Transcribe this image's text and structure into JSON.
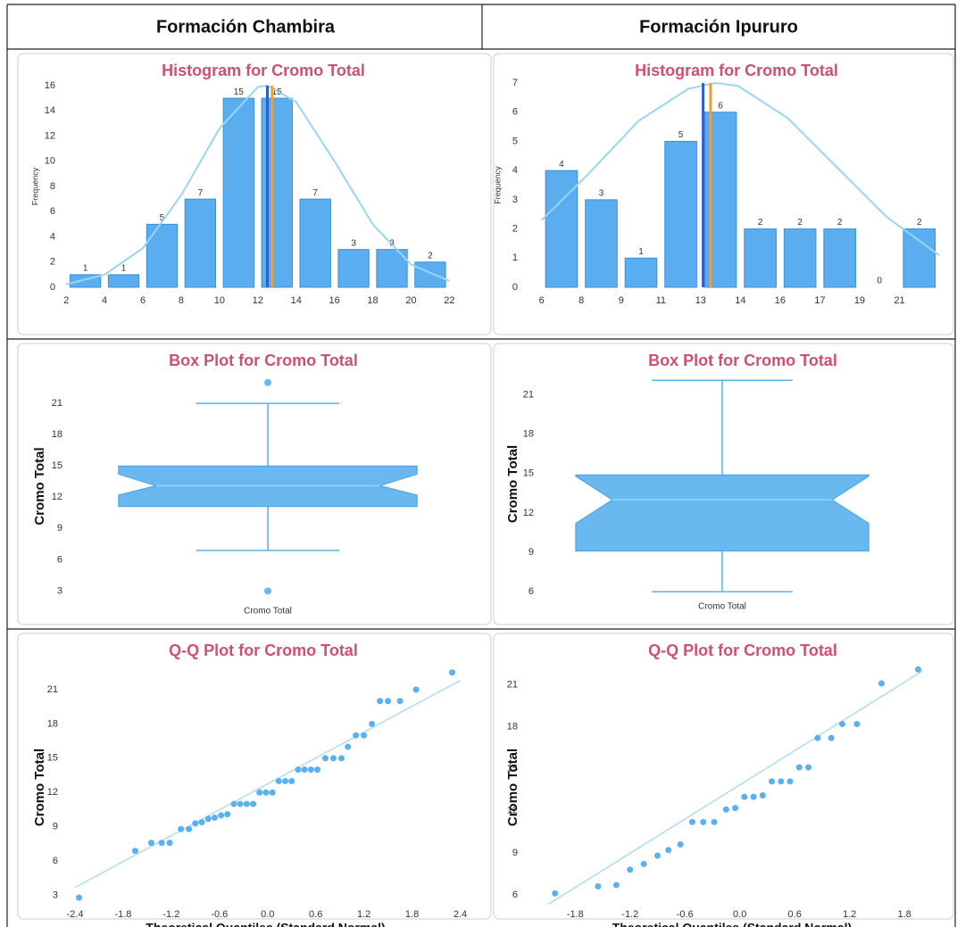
{
  "headers": [
    "Formación Chambira",
    "Formación Ipururo"
  ],
  "chart_data": [
    {
      "type": "histogram",
      "title": "Histogram for Cromo Total",
      "ylabel": "Frequency",
      "color": "#5aaef0",
      "bins": [
        2,
        4,
        6,
        8,
        10,
        12,
        14,
        16,
        18,
        20,
        22
      ],
      "values": [
        1,
        1,
        5,
        7,
        15,
        15,
        7,
        3,
        3,
        2
      ],
      "xlim": [
        1.9,
        22.4
      ],
      "xticks": [
        2,
        4,
        6,
        8,
        10,
        12,
        14,
        16,
        18,
        20,
        22
      ],
      "ylim": [
        0,
        16
      ],
      "yticks": [
        0,
        2,
        4,
        6,
        8,
        10,
        12,
        14,
        16
      ],
      "mean": 12.5,
      "median": 12.75,
      "mean_color": "#2a5fd0",
      "median_color": "#f0a030",
      "curve": {
        "color": "#9ad6f2",
        "x": [
          2,
          4,
          6,
          8,
          10,
          12,
          12.5,
          14,
          16,
          18,
          20,
          22
        ],
        "values": [
          0.23,
          1.0,
          3.1,
          7.3,
          12.6,
          15.9,
          16,
          14.7,
          10.0,
          5.0,
          1.8,
          0.5
        ]
      }
    },
    {
      "type": "histogram",
      "title": "Histogram for Cromo Total",
      "ylabel": "Frequency",
      "color": "#5aaef0",
      "bins": [
        6.1,
        7.7,
        9.3,
        10.9,
        12.5,
        14.1,
        15.7,
        17.3,
        18.9,
        20.5,
        22.1
      ],
      "values": [
        4,
        3,
        1,
        5,
        6,
        2,
        2,
        2,
        0,
        2
      ],
      "xlim": [
        5.5,
        22.1
      ],
      "xticks": [
        {
          "value": 6.1,
          "label": "6"
        },
        {
          "value": 7.7,
          "label": "8"
        },
        {
          "value": 9.3,
          "label": "9"
        },
        {
          "value": 10.9,
          "label": "11"
        },
        {
          "value": 12.5,
          "label": "13"
        },
        {
          "value": 14.1,
          "label": "14"
        },
        {
          "value": 15.7,
          "label": "16"
        },
        {
          "value": 17.3,
          "label": "17"
        },
        {
          "value": 18.9,
          "label": "19"
        },
        {
          "value": 20.5,
          "label": "21"
        }
      ],
      "ylim": [
        0,
        7
      ],
      "yticks": [
        0,
        1,
        2,
        3,
        4,
        5,
        6,
        7
      ],
      "mean": 12.6,
      "median": 12.9,
      "mean_color": "#2a5fd0",
      "median_color": "#f0a030",
      "curve": {
        "color": "#9ad6f2",
        "x": [
          6.1,
          8,
          10,
          12,
          13.1,
          14,
          16,
          18,
          20,
          22.1
        ],
        "values": [
          2.3,
          3.9,
          5.7,
          6.8,
          7,
          6.9,
          5.8,
          4.1,
          2.4,
          1.1
        ]
      }
    },
    {
      "type": "box",
      "title": "Box Plot for Cromo Total",
      "ylabel": "Cromo Total",
      "xlabel": "Cromo Total",
      "color": "#6ab8f0",
      "whisker_low": 6.9,
      "q1": 11.1,
      "notch_low": 12.2,
      "median": 13.1,
      "notch_high": 14.2,
      "q3": 15.0,
      "whisker_high": 21,
      "outliers": [
        23,
        3
      ],
      "ylim": [
        1.5,
        24.6
      ],
      "yticks": [
        3,
        6,
        9,
        12,
        15,
        18,
        21
      ]
    },
    {
      "type": "box",
      "title": "Box Plot for Cromo Total",
      "ylabel": "Cromo Total",
      "xlabel": "Cromo Total",
      "color": "#6ab8f0",
      "whisker_low": 6.0,
      "q1": 9.1,
      "notch_low": 11.2,
      "median": 13.0,
      "notch_high": 14.8,
      "q3": 14.9,
      "whisker_high": 22.1,
      "ylim": [
        5.2,
        23.2
      ],
      "yticks": [
        6,
        9,
        12,
        15,
        18,
        21
      ]
    },
    {
      "type": "qq",
      "title": "Q-Q Plot for Cromo Total",
      "ylabel": "Cromo Total",
      "xlabel": "Theoretical Quantiles (Standard Normal)",
      "color": "#5ab0f0",
      "x": [
        -2.35,
        -1.65,
        -1.45,
        -1.32,
        -1.22,
        -1.08,
        -0.98,
        -0.9,
        -0.82,
        -0.74,
        -0.66,
        -0.58,
        -0.5,
        -0.42,
        -0.34,
        -0.26,
        -0.18,
        -0.1,
        -0.02,
        0.06,
        0.14,
        0.22,
        0.3,
        0.38,
        0.46,
        0.54,
        0.62,
        0.72,
        0.82,
        0.92,
        1.0,
        1.1,
        1.2,
        1.3,
        1.4,
        1.5,
        1.65,
        1.85,
        2.3
      ],
      "values": [
        2.8,
        6.9,
        7.6,
        7.6,
        7.6,
        8.8,
        8.8,
        9.3,
        9.4,
        9.7,
        9.8,
        10,
        10.1,
        11,
        11,
        11,
        11,
        12,
        12,
        12,
        13,
        13,
        13,
        14,
        14,
        14,
        14,
        15,
        15,
        15,
        16,
        17,
        17,
        18,
        20,
        20,
        20,
        21,
        22.5
      ],
      "line": {
        "color": "#b0dcf2",
        "x": [
          -2.4,
          2.4
        ],
        "values": [
          3.7,
          21.8
        ]
      },
      "xlim": [
        -2.5,
        2.45
      ],
      "xticks": [
        -2.4,
        -1.8,
        -1.2,
        -0.6,
        {
          "value": 0,
          "label": "0.0"
        },
        0.6,
        1.2,
        1.8,
        2.4
      ],
      "ylim": [
        2.5,
        22.4
      ],
      "yticks": [
        3,
        6,
        9,
        12,
        15,
        18,
        21
      ]
    },
    {
      "type": "qq",
      "title": "Q-Q Plot for Cromo Total",
      "ylabel": "Cromo Total",
      "xlabel": "Theoretical Quantiles (Standard Normal)",
      "color": "#5ab0f0",
      "x": [
        -2.02,
        -1.55,
        -1.35,
        -1.2,
        -1.05,
        -0.9,
        -0.78,
        -0.65,
        -0.52,
        -0.4,
        -0.28,
        -0.15,
        -0.05,
        0.05,
        0.15,
        0.25,
        0.35,
        0.45,
        0.55,
        0.65,
        0.75,
        0.85,
        1.0,
        1.12,
        1.28,
        1.55,
        1.95
      ],
      "values": [
        6.1,
        6.6,
        6.7,
        7.8,
        8.2,
        8.8,
        9.2,
        9.6,
        11.2,
        11.2,
        11.2,
        12.1,
        12.2,
        13,
        13,
        13.1,
        14.1,
        14.1,
        14.1,
        15.1,
        15.1,
        17.2,
        17.2,
        18.2,
        18.2,
        21.1,
        22.1
      ],
      "line": {
        "color": "#b0dcf2",
        "x": [
          -2.1,
          2.0
        ],
        "values": [
          5.3,
          22
        ]
      },
      "xlim": [
        -2.33,
        2.16
      ],
      "xticks": [
        -1.8,
        -1.2,
        -0.6,
        {
          "value": 0,
          "label": "0.0"
        },
        0.6,
        1.2,
        1.8
      ],
      "ylim": [
        5.55,
        21.8
      ],
      "yticks": [
        6,
        9,
        12,
        15,
        18,
        21
      ]
    }
  ]
}
